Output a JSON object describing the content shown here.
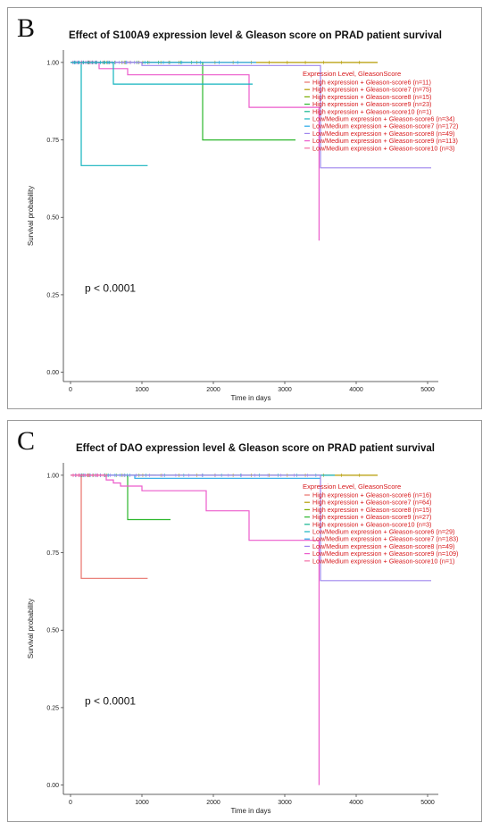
{
  "panels": [
    {
      "letter": "B",
      "chart_data": {
        "type": "line",
        "title": "Effect of S100A9 expression level & Gleason score on PRAD patient survival",
        "xlabel": "Time in days",
        "ylabel": "Survival probability",
        "xlim": [
          -100,
          5150
        ],
        "ylim": [
          -0.03,
          1.04
        ],
        "xticks": [
          0,
          1000,
          2000,
          3000,
          4000,
          5000
        ],
        "yticks": [
          "0.00",
          "0.25",
          "0.50",
          "0.75",
          "1.00"
        ],
        "legend_title": "Expression Level, GleasonScore",
        "annotation": "p < 0.0001",
        "series": [
          {
            "name": "High expression + Gleason-score6 (n=11)",
            "color": "#e8726a",
            "x": [
              0,
              1650
            ],
            "y": [
              1.0,
              1.0
            ]
          },
          {
            "name": "High expression + Gleason-score7 (n=75)",
            "color": "#b59b00",
            "x": [
              0,
              4300
            ],
            "y": [
              1.0,
              1.0
            ]
          },
          {
            "name": "High expression + Gleason-score8 (n=15)",
            "color": "#7aab00",
            "x": [
              0,
              1200
            ],
            "y": [
              1.0,
              1.0
            ]
          },
          {
            "name": "High expression + Gleason-score9 (n=23)",
            "color": "#2cb72c",
            "x": [
              0,
              1850,
              1850,
              3150
            ],
            "y": [
              1.0,
              1.0,
              0.75,
              0.75
            ]
          },
          {
            "name": "High expression + Gleason-score10 (n=1)",
            "color": "#11b58e",
            "x": [
              0,
              700
            ],
            "y": [
              1.0,
              1.0
            ]
          },
          {
            "name": "Low/Medium expression + Gleason-score6 (n=34)",
            "color": "#13b3bf",
            "x": [
              0,
              150,
              150,
              1080
            ],
            "y": [
              1.0,
              1.0,
              0.667,
              0.667
            ]
          },
          {
            "name": "Low/Medium expression + Gleason-score7 (n=172)",
            "color": "#27a8e8",
            "x": [
              0,
              2600
            ],
            "y": [
              1.0,
              1.0
            ]
          },
          {
            "name": "Low/Medium expression + Gleason-score8 (n=49)",
            "color": "#9f86ee",
            "x": [
              0,
              1000,
              1000,
              3500,
              3500,
              5050
            ],
            "y": [
              1.0,
              1.0,
              0.99,
              0.99,
              0.66,
              0.66
            ]
          },
          {
            "name": "Low/Medium expression + Gleason-score9 (n=113)",
            "color": "#ec5bcc",
            "x": [
              0,
              400,
              400,
              800,
              800,
              2500,
              2500,
              3480,
              3480
            ],
            "y": [
              1.0,
              1.0,
              0.98,
              0.98,
              0.96,
              0.96,
              0.855,
              0.855,
              0.425
            ]
          },
          {
            "name": "Low/Medium expression + Gleason-score10 (n=3)",
            "color": "#f36ea6",
            "x": [
              0,
              600
            ],
            "y": [
              1.0,
              1.0
            ]
          },
          {
            "name": "",
            "color": "#13b3bf",
            "x": [
              0,
              600,
              600,
              2550
            ],
            "y": [
              1.0,
              1.0,
              0.93,
              0.93
            ]
          }
        ]
      }
    },
    {
      "letter": "C",
      "chart_data": {
        "type": "line",
        "title": "Effect of DAO expression level & Gleason score on PRAD patient survival",
        "xlabel": "Time in days",
        "ylabel": "Survival probability",
        "xlim": [
          -100,
          5150
        ],
        "ylim": [
          -0.03,
          1.04
        ],
        "xticks": [
          0,
          1000,
          2000,
          3000,
          4000,
          5000
        ],
        "yticks": [
          "0.00",
          "0.25",
          "0.50",
          "0.75",
          "1.00"
        ],
        "legend_title": "Expression Level, GleasonScore",
        "annotation": "p < 0.0001",
        "series": [
          {
            "name": "High expression + Gleason-score6 (n=16)",
            "color": "#e8726a",
            "x": [
              0,
              150,
              150,
              1080
            ],
            "y": [
              1.0,
              1.0,
              0.667,
              0.667
            ]
          },
          {
            "name": "High expression + Gleason-score7 (n=64)",
            "color": "#b59b00",
            "x": [
              0,
              4300
            ],
            "y": [
              1.0,
              1.0
            ]
          },
          {
            "name": "High expression + Gleason-score8 (n=15)",
            "color": "#7aab00",
            "x": [
              0,
              1200
            ],
            "y": [
              1.0,
              1.0
            ]
          },
          {
            "name": "High expression + Gleason-score9 (n=27)",
            "color": "#2cb72c",
            "x": [
              0,
              800,
              800,
              1400
            ],
            "y": [
              1.0,
              1.0,
              0.857,
              0.857
            ]
          },
          {
            "name": "High expression + Gleason-score10 (n=3)",
            "color": "#11b58e",
            "x": [
              0,
              700
            ],
            "y": [
              1.0,
              1.0
            ]
          },
          {
            "name": "Low/Medium expression + Gleason-score6 (n=29)",
            "color": "#13b3bf",
            "x": [
              0,
              3700
            ],
            "y": [
              1.0,
              1.0
            ]
          },
          {
            "name": "Low/Medium expression + Gleason-score7 (n=183)",
            "color": "#27a8e8",
            "x": [
              0,
              900,
              900,
              3500
            ],
            "y": [
              1.0,
              1.0,
              0.99,
              0.99
            ]
          },
          {
            "name": "Low/Medium expression + Gleason-score8 (n=49)",
            "color": "#9f86ee",
            "x": [
              0,
              3500,
              3500,
              5050
            ],
            "y": [
              1.0,
              1.0,
              0.66,
              0.66
            ]
          },
          {
            "name": "Low/Medium expression + Gleason-score9 (n=109)",
            "color": "#ec5bcc",
            "x": [
              0,
              500,
              500,
              600,
              600,
              700,
              700,
              1000,
              1000,
              1900,
              1900,
              2500,
              2500,
              3480,
              3480
            ],
            "y": [
              1.0,
              1.0,
              0.985,
              0.985,
              0.975,
              0.975,
              0.965,
              0.965,
              0.95,
              0.95,
              0.885,
              0.885,
              0.79,
              0.79,
              0.0
            ]
          },
          {
            "name": "Low/Medium expression + Gleason-score10 (n=1)",
            "color": "#f36ea6",
            "x": [
              0,
              500
            ],
            "y": [
              1.0,
              1.0
            ]
          }
        ]
      }
    }
  ]
}
